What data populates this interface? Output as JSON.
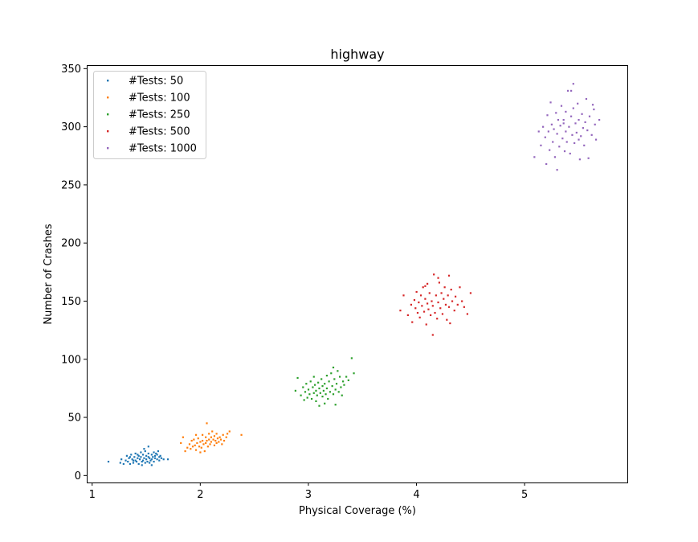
{
  "chart_data": {
    "type": "scatter",
    "title": "highway",
    "xlabel": "Physical Coverage  (%)",
    "ylabel": "Number of Crashes",
    "xlim": [
      0.95,
      5.95
    ],
    "ylim": [
      -6,
      353
    ],
    "xticks": [
      1,
      2,
      3,
      4,
      5
    ],
    "yticks": [
      0,
      50,
      100,
      150,
      200,
      250,
      300,
      350
    ],
    "grid": false,
    "legend_position": "upper-left",
    "series": [
      {
        "name": "#Tests: 50",
        "color": "#1f77b4",
        "points": [
          [
            1.15,
            12
          ],
          [
            1.26,
            11
          ],
          [
            1.27,
            14
          ],
          [
            1.29,
            10
          ],
          [
            1.31,
            13
          ],
          [
            1.32,
            17
          ],
          [
            1.33,
            12
          ],
          [
            1.34,
            15
          ],
          [
            1.35,
            10
          ],
          [
            1.36,
            18
          ],
          [
            1.37,
            14
          ],
          [
            1.38,
            11
          ],
          [
            1.39,
            16
          ],
          [
            1.4,
            19
          ],
          [
            1.4,
            13
          ],
          [
            1.41,
            12
          ],
          [
            1.42,
            15
          ],
          [
            1.43,
            17
          ],
          [
            1.43,
            10
          ],
          [
            1.44,
            14
          ],
          [
            1.45,
            20
          ],
          [
            1.45,
            16
          ],
          [
            1.46,
            12
          ],
          [
            1.47,
            18
          ],
          [
            1.47,
            13
          ],
          [
            1.48,
            15
          ],
          [
            1.49,
            11
          ],
          [
            1.49,
            21
          ],
          [
            1.5,
            17
          ],
          [
            1.5,
            14
          ],
          [
            1.51,
            12
          ],
          [
            1.52,
            16
          ],
          [
            1.52,
            19
          ],
          [
            1.53,
            15
          ],
          [
            1.53,
            11
          ],
          [
            1.54,
            13
          ],
          [
            1.55,
            18
          ],
          [
            1.55,
            14
          ],
          [
            1.56,
            16
          ],
          [
            1.57,
            20
          ],
          [
            1.57,
            12
          ],
          [
            1.58,
            17
          ],
          [
            1.58,
            15
          ],
          [
            1.59,
            19
          ],
          [
            1.6,
            14
          ],
          [
            1.6,
            18
          ],
          [
            1.61,
            21
          ],
          [
            1.62,
            16
          ],
          [
            1.62,
            13
          ],
          [
            1.63,
            17
          ],
          [
            1.64,
            15
          ],
          [
            1.66,
            14
          ],
          [
            1.7,
            14
          ],
          [
            1.48,
            23
          ],
          [
            1.52,
            25
          ],
          [
            1.42,
            18
          ],
          [
            1.38,
            13
          ],
          [
            1.46,
            9
          ],
          [
            1.55,
            9
          ],
          [
            1.35,
            16
          ]
        ]
      },
      {
        "name": "#Tests: 100",
        "color": "#ff7f0e",
        "points": [
          [
            1.82,
            28
          ],
          [
            1.84,
            33
          ],
          [
            1.86,
            21
          ],
          [
            1.88,
            24
          ],
          [
            1.9,
            27
          ],
          [
            1.91,
            23
          ],
          [
            1.92,
            30
          ],
          [
            1.93,
            25
          ],
          [
            1.94,
            31
          ],
          [
            1.95,
            26
          ],
          [
            1.96,
            22
          ],
          [
            1.97,
            28
          ],
          [
            1.98,
            32
          ],
          [
            1.99,
            25
          ],
          [
            2.0,
            29
          ],
          [
            2.01,
            24
          ],
          [
            2.02,
            30
          ],
          [
            2.02,
            35
          ],
          [
            2.03,
            27
          ],
          [
            2.04,
            21
          ],
          [
            2.05,
            33
          ],
          [
            2.05,
            28
          ],
          [
            2.06,
            30
          ],
          [
            2.07,
            25
          ],
          [
            2.08,
            36
          ],
          [
            2.08,
            31
          ],
          [
            2.09,
            27
          ],
          [
            2.1,
            33
          ],
          [
            2.1,
            29
          ],
          [
            2.11,
            38
          ],
          [
            2.12,
            31
          ],
          [
            2.13,
            26
          ],
          [
            2.13,
            34
          ],
          [
            2.14,
            30
          ],
          [
            2.15,
            28
          ],
          [
            2.15,
            36
          ],
          [
            2.16,
            32
          ],
          [
            2.17,
            29
          ],
          [
            2.18,
            33
          ],
          [
            2.19,
            31
          ],
          [
            2.2,
            27
          ],
          [
            2.21,
            35
          ],
          [
            2.22,
            30
          ],
          [
            2.24,
            33
          ],
          [
            2.25,
            36
          ],
          [
            2.27,
            38
          ],
          [
            2.38,
            35
          ],
          [
            2.06,
            45
          ],
          [
            2.0,
            20
          ],
          [
            1.96,
            35
          ]
        ]
      },
      {
        "name": "#Tests: 250",
        "color": "#2ca02c",
        "points": [
          [
            2.88,
            73
          ],
          [
            2.9,
            84
          ],
          [
            2.93,
            69
          ],
          [
            2.95,
            76
          ],
          [
            2.96,
            65
          ],
          [
            2.97,
            72
          ],
          [
            2.98,
            79
          ],
          [
            2.99,
            67
          ],
          [
            3.0,
            74
          ],
          [
            3.01,
            70
          ],
          [
            3.02,
            81
          ],
          [
            3.03,
            66
          ],
          [
            3.04,
            76
          ],
          [
            3.05,
            71
          ],
          [
            3.06,
            78
          ],
          [
            3.07,
            64
          ],
          [
            3.07,
            73
          ],
          [
            3.08,
            69
          ],
          [
            3.09,
            80
          ],
          [
            3.1,
            75
          ],
          [
            3.1,
            60
          ],
          [
            3.11,
            71
          ],
          [
            3.12,
            83
          ],
          [
            3.13,
            77
          ],
          [
            3.13,
            68
          ],
          [
            3.14,
            73
          ],
          [
            3.15,
            79
          ],
          [
            3.16,
            70
          ],
          [
            3.17,
            86
          ],
          [
            3.17,
            75
          ],
          [
            3.18,
            66
          ],
          [
            3.19,
            81
          ],
          [
            3.2,
            72
          ],
          [
            3.21,
            88
          ],
          [
            3.22,
            77
          ],
          [
            3.23,
            70
          ],
          [
            3.24,
            83
          ],
          [
            3.25,
            74
          ],
          [
            3.25,
            61
          ],
          [
            3.26,
            79
          ],
          [
            3.27,
            90
          ],
          [
            3.28,
            72
          ],
          [
            3.29,
            85
          ],
          [
            3.3,
            76
          ],
          [
            3.31,
            69
          ],
          [
            3.32,
            81
          ],
          [
            3.33,
            78
          ],
          [
            3.35,
            85
          ],
          [
            3.37,
            82
          ],
          [
            3.4,
            101
          ],
          [
            3.42,
            88
          ],
          [
            3.15,
            62
          ],
          [
            3.05,
            85
          ],
          [
            3.23,
            93
          ]
        ]
      },
      {
        "name": "#Tests: 500",
        "color": "#d62728",
        "points": [
          [
            3.85,
            142
          ],
          [
            3.88,
            155
          ],
          [
            3.92,
            138
          ],
          [
            3.95,
            147
          ],
          [
            3.96,
            132
          ],
          [
            3.98,
            151
          ],
          [
            3.99,
            144
          ],
          [
            4.0,
            158
          ],
          [
            4.01,
            140
          ],
          [
            4.02,
            149
          ],
          [
            4.03,
            136
          ],
          [
            4.04,
            155
          ],
          [
            4.05,
            146
          ],
          [
            4.06,
            162
          ],
          [
            4.07,
            141
          ],
          [
            4.08,
            152
          ],
          [
            4.09,
            130
          ],
          [
            4.1,
            148
          ],
          [
            4.1,
            165
          ],
          [
            4.11,
            143
          ],
          [
            4.12,
            157
          ],
          [
            4.13,
            138
          ],
          [
            4.14,
            150
          ],
          [
            4.15,
            121
          ],
          [
            4.15,
            146
          ],
          [
            4.16,
            173
          ],
          [
            4.17,
            140
          ],
          [
            4.18,
            155
          ],
          [
            4.19,
            135
          ],
          [
            4.2,
            149
          ],
          [
            4.21,
            166
          ],
          [
            4.22,
            144
          ],
          [
            4.23,
            157
          ],
          [
            4.24,
            139
          ],
          [
            4.25,
            152
          ],
          [
            4.26,
            162
          ],
          [
            4.27,
            147
          ],
          [
            4.28,
            134
          ],
          [
            4.29,
            155
          ],
          [
            4.3,
            145
          ],
          [
            4.31,
            131
          ],
          [
            4.32,
            160
          ],
          [
            4.33,
            150
          ],
          [
            4.35,
            142
          ],
          [
            4.36,
            154
          ],
          [
            4.38,
            147
          ],
          [
            4.4,
            162
          ],
          [
            4.42,
            150
          ],
          [
            4.44,
            145
          ],
          [
            4.47,
            139
          ],
          [
            4.5,
            157
          ],
          [
            4.2,
            170
          ],
          [
            4.08,
            163
          ],
          [
            4.3,
            172
          ]
        ]
      },
      {
        "name": "#Tests: 1000",
        "color": "#9467bd",
        "points": [
          [
            5.09,
            274
          ],
          [
            5.13,
            296
          ],
          [
            5.15,
            284
          ],
          [
            5.17,
            300
          ],
          [
            5.19,
            291
          ],
          [
            5.2,
            268
          ],
          [
            5.21,
            310
          ],
          [
            5.22,
            296
          ],
          [
            5.23,
            280
          ],
          [
            5.24,
            321
          ],
          [
            5.25,
            302
          ],
          [
            5.26,
            287
          ],
          [
            5.27,
            298
          ],
          [
            5.28,
            274
          ],
          [
            5.29,
            312
          ],
          [
            5.3,
            263
          ],
          [
            5.3,
            294
          ],
          [
            5.31,
            306
          ],
          [
            5.32,
            283
          ],
          [
            5.33,
            301
          ],
          [
            5.34,
            318
          ],
          [
            5.35,
            290
          ],
          [
            5.36,
            303
          ],
          [
            5.37,
            279
          ],
          [
            5.38,
            296
          ],
          [
            5.38,
            313
          ],
          [
            5.39,
            287
          ],
          [
            5.4,
            331
          ],
          [
            5.41,
            300
          ],
          [
            5.42,
            277
          ],
          [
            5.43,
            309
          ],
          [
            5.44,
            293
          ],
          [
            5.45,
            316
          ],
          [
            5.45,
            337
          ],
          [
            5.46,
            286
          ],
          [
            5.47,
            303
          ],
          [
            5.48,
            295
          ],
          [
            5.49,
            320
          ],
          [
            5.5,
            306
          ],
          [
            5.51,
            272
          ],
          [
            5.52,
            292
          ],
          [
            5.53,
            311
          ],
          [
            5.54,
            299
          ],
          [
            5.55,
            284
          ],
          [
            5.56,
            304
          ],
          [
            5.57,
            324
          ],
          [
            5.58,
            297
          ],
          [
            5.59,
            273
          ],
          [
            5.6,
            309
          ],
          [
            5.62,
            293
          ],
          [
            5.63,
            319
          ],
          [
            5.64,
            315
          ],
          [
            5.65,
            302
          ],
          [
            5.66,
            289
          ],
          [
            5.69,
            306
          ],
          [
            5.43,
            331
          ],
          [
            5.36,
            306
          ],
          [
            5.5,
            289
          ]
        ]
      }
    ]
  }
}
